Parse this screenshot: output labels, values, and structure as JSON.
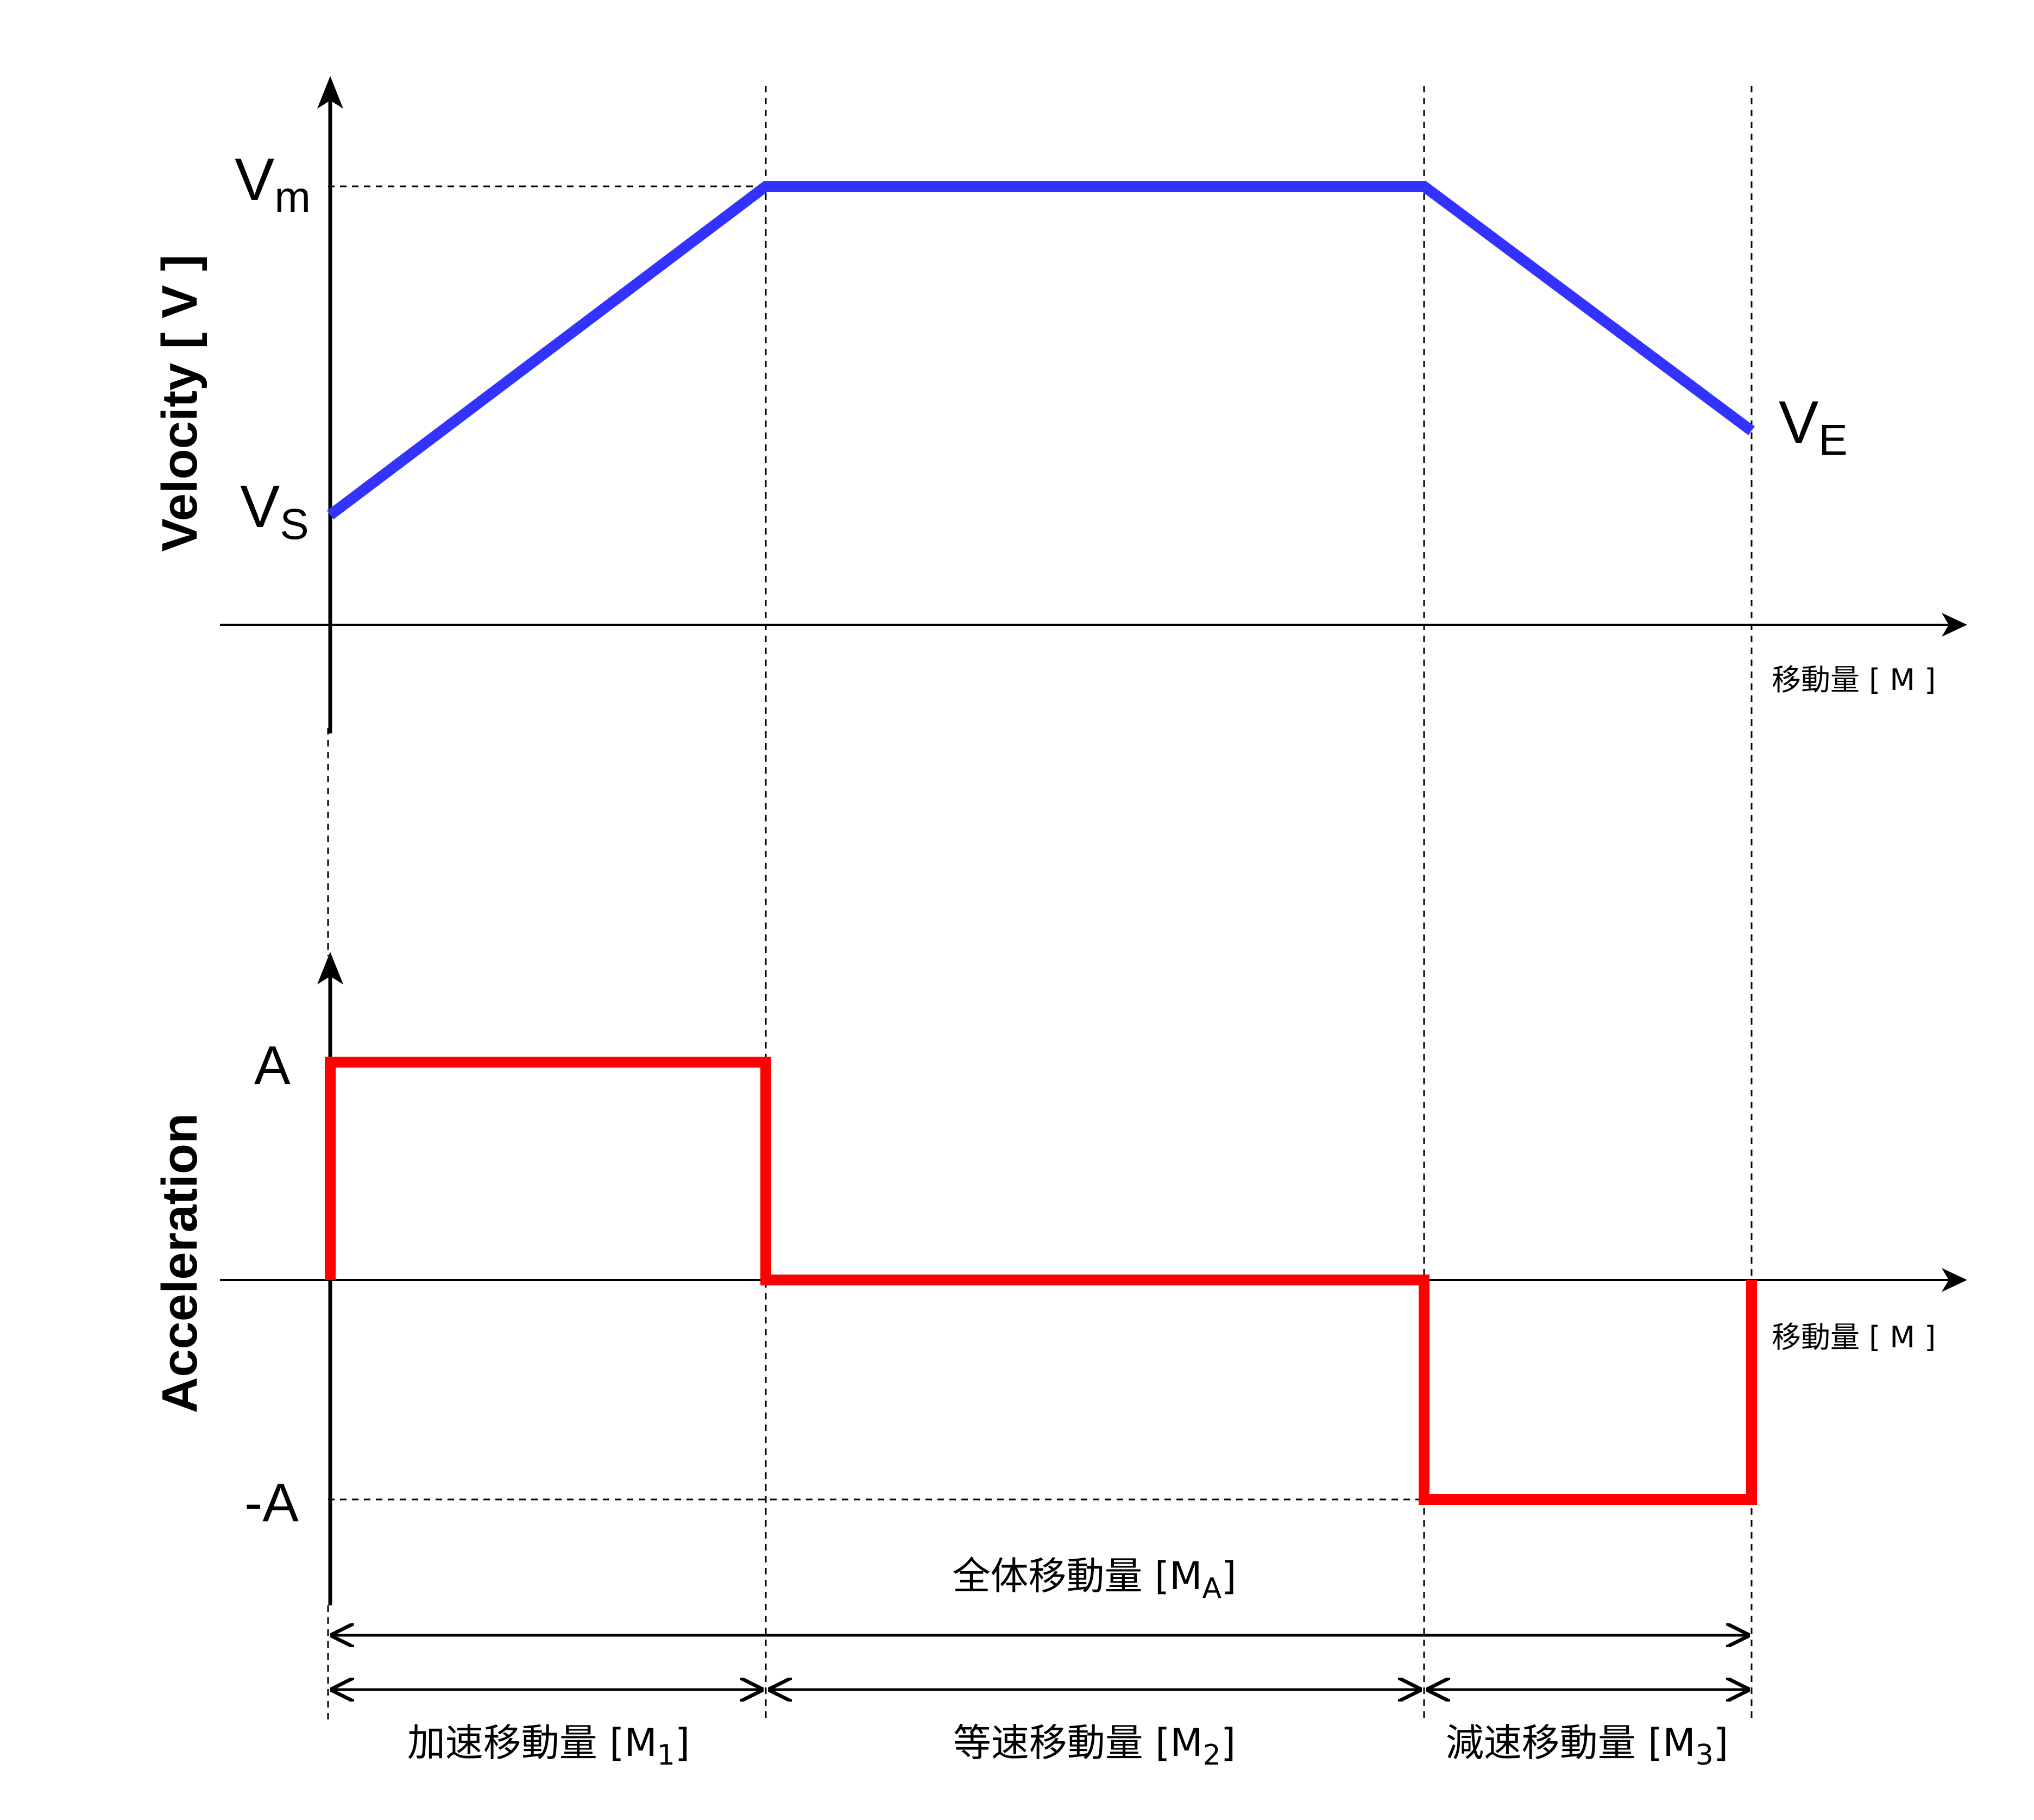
{
  "velocity_plot": {
    "y_axis_title": "Velocity [ V ]",
    "x_axis_title": "移動量 [ M ]",
    "vm_main": "V",
    "vm_sub": "m",
    "vs_main": "V",
    "vs_sub": "S",
    "ve_main": "V",
    "ve_sub": "E",
    "line_color": "#3333ff"
  },
  "acceleration_plot": {
    "y_axis_title": "Acceleration",
    "x_axis_title": "移動量 [ M ]",
    "a_pos": "A",
    "a_neg": "-A",
    "line_color": "#ff0000"
  },
  "dimensions": {
    "total_main": "全体移動量 [M",
    "total_sub": "A",
    "total_end": "]",
    "seg1_main": "加速移動量 [M",
    "seg1_sub": "1",
    "seg1_end": "]",
    "seg2_main": "等速移動量 [M",
    "seg2_sub": "2",
    "seg2_end": "]",
    "seg3_main": "減速移動量 [M",
    "seg3_sub": "3",
    "seg3_end": "]"
  }
}
